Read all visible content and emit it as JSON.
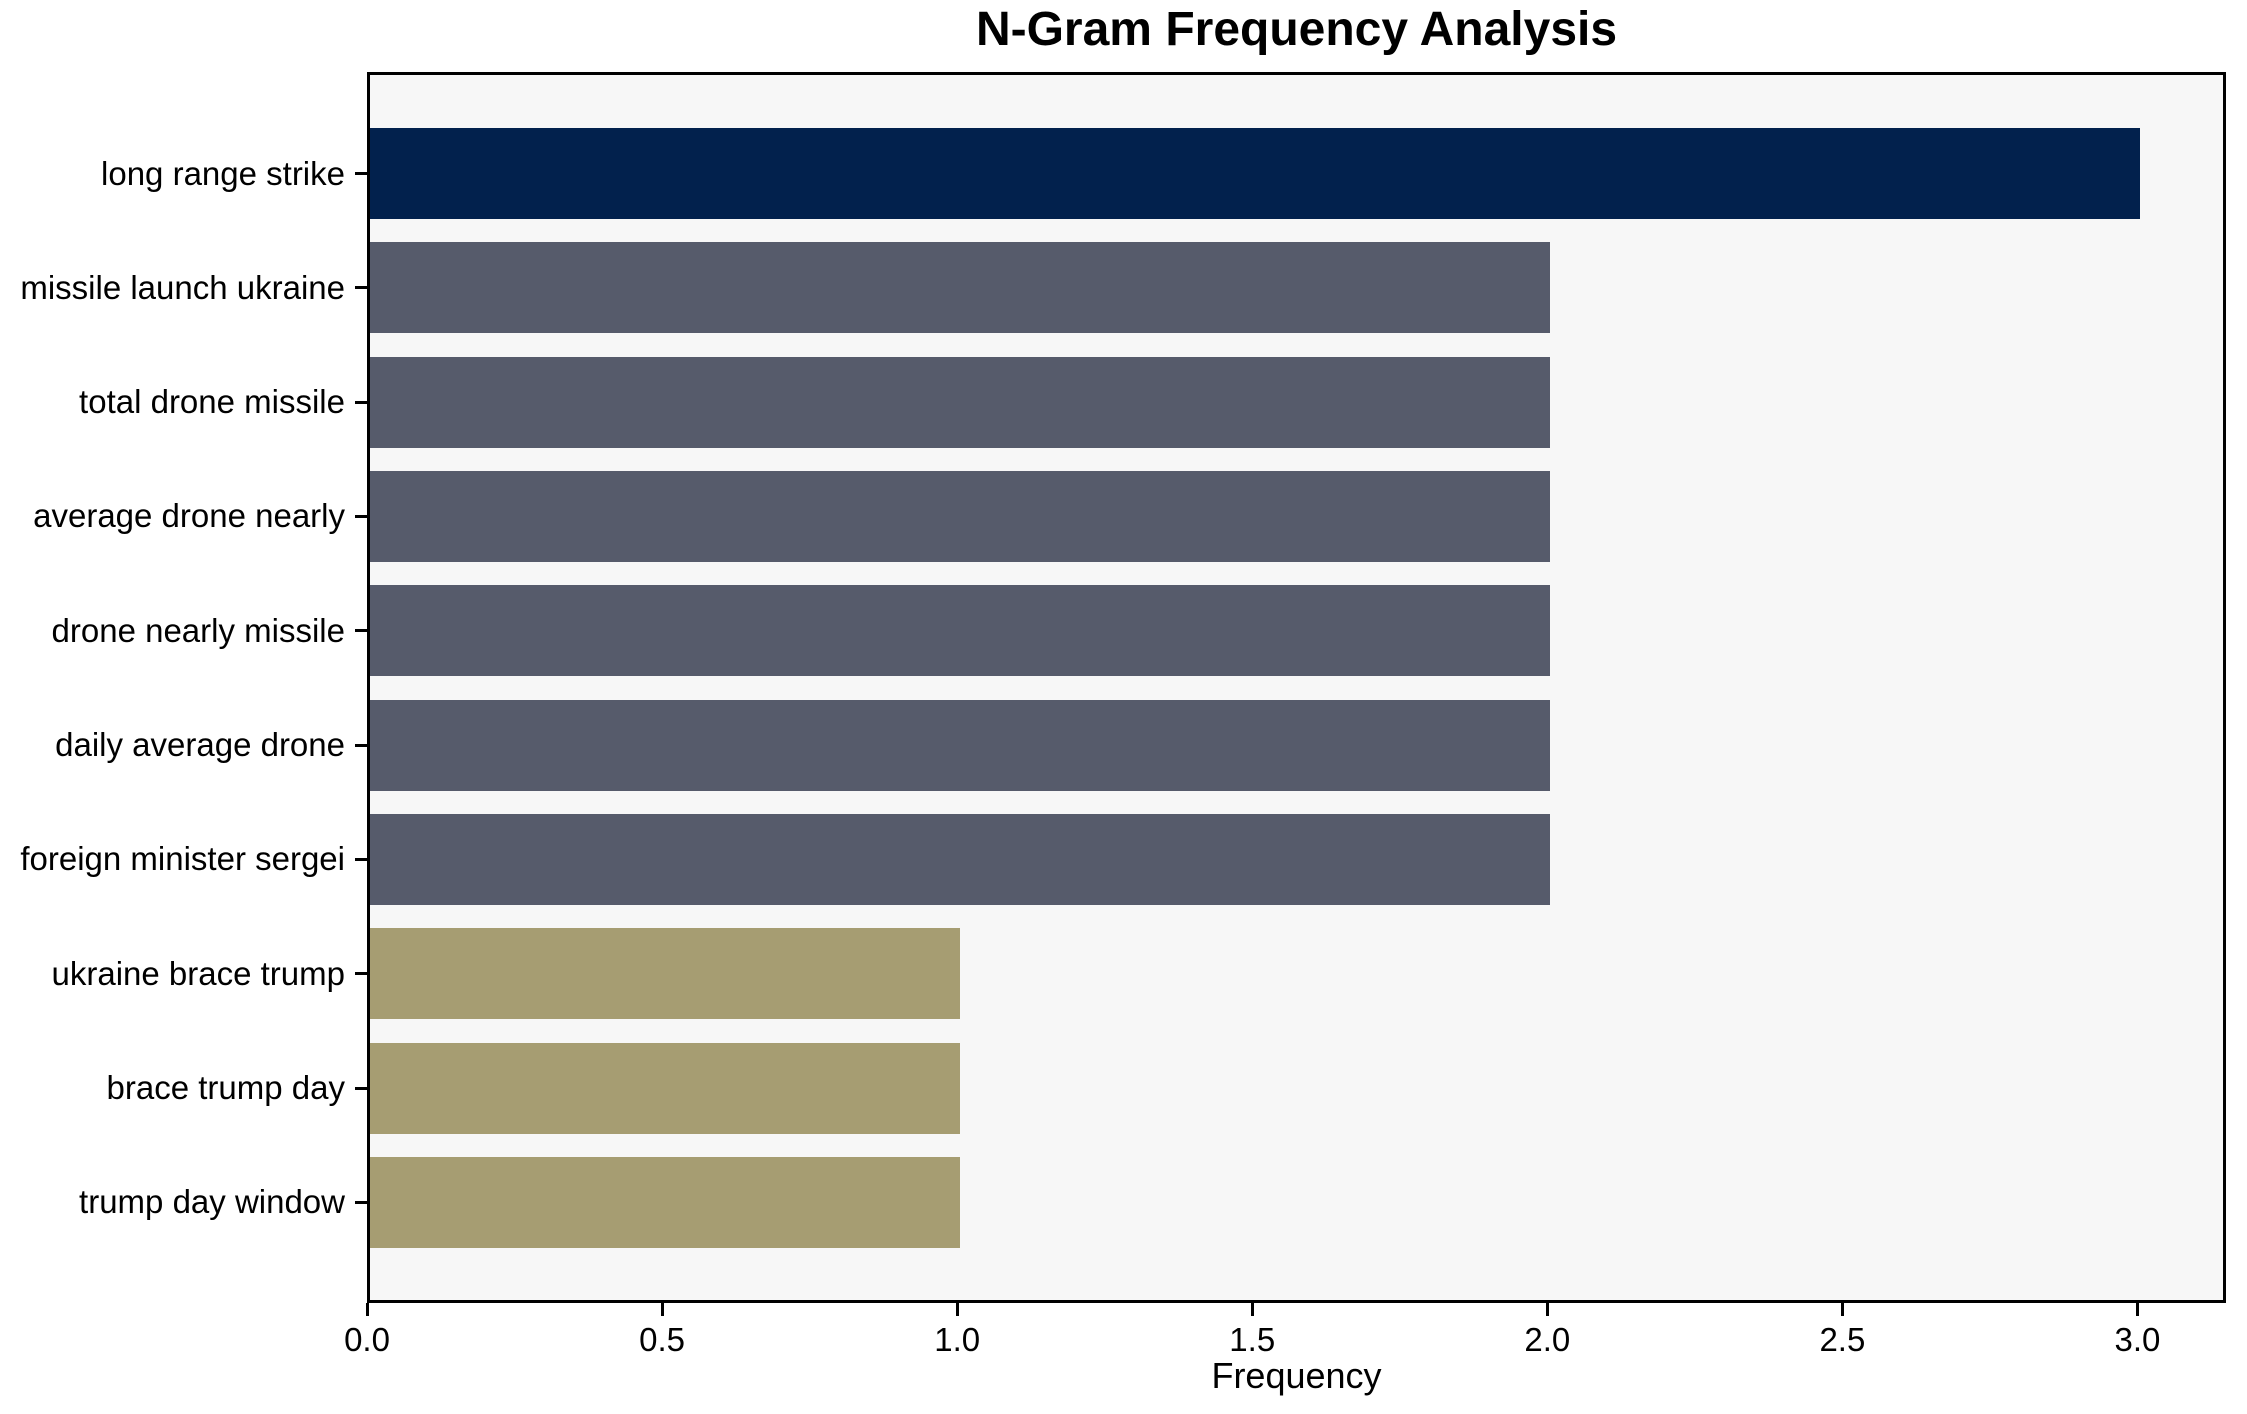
{
  "chart_data": {
    "type": "bar",
    "orientation": "horizontal",
    "title": "N-Gram Frequency Analysis",
    "xlabel": "Frequency",
    "ylabel": "",
    "categories": [
      "long range strike",
      "missile launch ukraine",
      "total drone missile",
      "average drone nearly",
      "drone nearly missile",
      "daily average drone",
      "foreign minister sergei",
      "ukraine brace trump",
      "brace trump day",
      "trump day window"
    ],
    "values": [
      3,
      2,
      2,
      2,
      2,
      2,
      2,
      1,
      1,
      1
    ],
    "bar_colors": [
      "#02214d",
      "#565b6b",
      "#565b6b",
      "#565b6b",
      "#565b6b",
      "#565b6b",
      "#565b6b",
      "#a69d72",
      "#a69d72",
      "#a69d72"
    ],
    "x_ticks": [
      0.0,
      0.5,
      1.0,
      1.5,
      2.0,
      2.5,
      3.0
    ],
    "x_tick_labels": [
      "0.0",
      "0.5",
      "1.0",
      "1.5",
      "2.0",
      "2.5",
      "3.0"
    ],
    "xlim": [
      0,
      3.15
    ],
    "grid": false,
    "legend": null,
    "colors": {
      "highlight_navy": "#02214d",
      "mid_slate": "#565b6b",
      "low_khaki": "#a69d72",
      "plot_background": "#f7f7f7",
      "spine": "#000000",
      "figure_background": "#ffffff"
    }
  }
}
